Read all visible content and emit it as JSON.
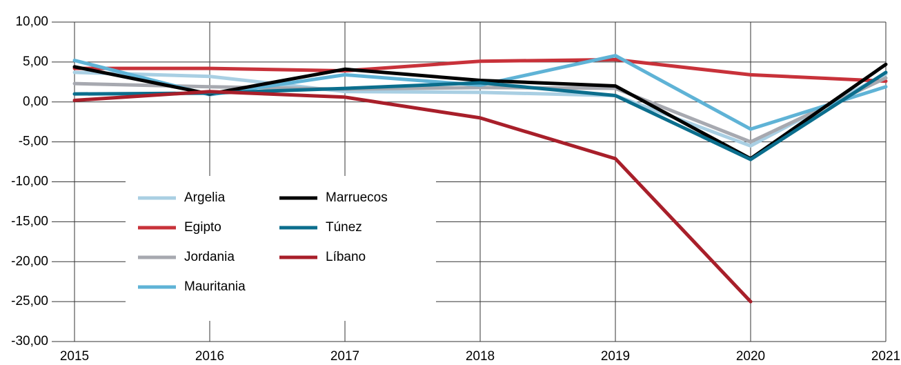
{
  "chart_data": {
    "type": "line",
    "x": [
      2015,
      2016,
      2017,
      2018,
      2019,
      2020,
      2021
    ],
    "xlim": [
      2015,
      2021
    ],
    "xticks": [
      2015,
      2016,
      2017,
      2018,
      2019,
      2020,
      2021
    ],
    "ylim": [
      -30,
      10
    ],
    "yticks": [
      {
        "value": -30,
        "label": "-30,00"
      },
      {
        "value": -25,
        "label": "-25,00"
      },
      {
        "value": -20,
        "label": "-20,00"
      },
      {
        "value": -15,
        "label": "-15,00"
      },
      {
        "value": -10,
        "label": "-10,00"
      },
      {
        "value": -5,
        "label": "-5,00"
      },
      {
        "value": 0,
        "label": "0,00"
      },
      {
        "value": 5,
        "label": "5,00"
      },
      {
        "value": 10,
        "label": "10,00"
      }
    ],
    "grid": true,
    "legend": "lower left",
    "series": [
      {
        "name": "Argelia",
        "color": "#a9cfe3",
        "values": [
          3.7,
          3.2,
          1.3,
          1.2,
          0.8,
          -5.5,
          3.5
        ]
      },
      {
        "name": "Egipto",
        "color": "#c8323a",
        "values": [
          4.2,
          4.2,
          3.9,
          5.1,
          5.3,
          3.4,
          2.6
        ]
      },
      {
        "name": "Jordania",
        "color": "#a7a9b0",
        "values": [
          2.3,
          1.9,
          1.6,
          1.8,
          1.7,
          -5.0,
          3.0
        ]
      },
      {
        "name": "Mauritania",
        "color": "#5fb3d6",
        "values": [
          5.2,
          0.9,
          3.4,
          2.1,
          5.8,
          -3.4,
          1.9
        ]
      },
      {
        "name": "Marruecos",
        "color": "#000000",
        "values": [
          4.4,
          1.0,
          4.1,
          2.7,
          2.0,
          -7.1,
          4.7
        ]
      },
      {
        "name": "Túnez",
        "color": "#0b6e8d",
        "values": [
          1.0,
          1.1,
          1.7,
          2.4,
          0.8,
          -7.2,
          3.7
        ]
      },
      {
        "name": "Líbano",
        "color": "#a81f2a",
        "values": [
          0.2,
          1.3,
          0.6,
          -2.0,
          -7.1,
          -25.0,
          null
        ]
      }
    ]
  }
}
